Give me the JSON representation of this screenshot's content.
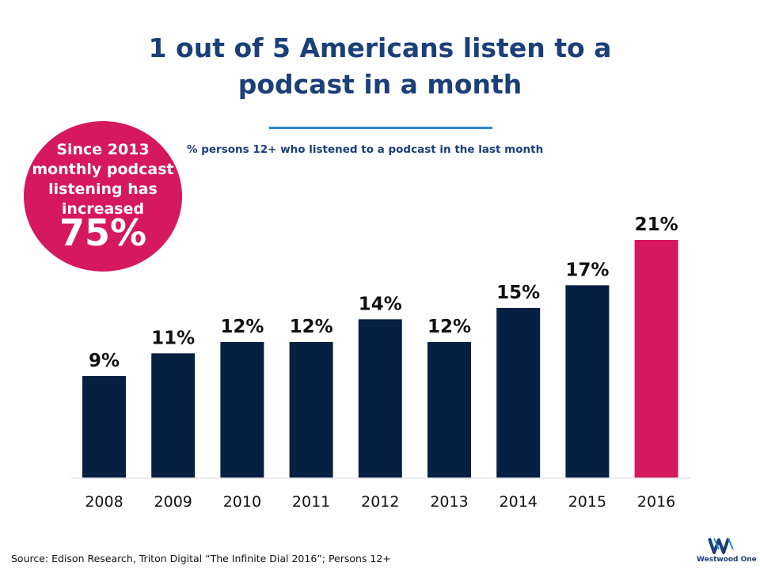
{
  "title_lines": [
    "1 out of 5 Americans listen to a",
    "podcast in a month"
  ],
  "subtitle": "% persons 12+ who listened to a podcast in the last month",
  "callout": {
    "lines": [
      "Since 2013",
      "monthly podcast",
      "listening has",
      "increased"
    ],
    "value": "75%"
  },
  "source": "Source: Edison Research, Triton Digital “The Infinite Dial 2016”; Persons 12+",
  "logo_text": "Westwood One",
  "colors": {
    "title": "#1b3f78",
    "bar": "#062042",
    "highlight": "#d6185f",
    "rule": "#2b8ccf"
  },
  "chart_data": {
    "type": "bar",
    "categories": [
      "2008",
      "2009",
      "2010",
      "2011",
      "2012",
      "2013",
      "2014",
      "2015",
      "2016"
    ],
    "values": [
      9,
      11,
      12,
      12,
      14,
      12,
      15,
      17,
      21
    ],
    "data_labels": [
      "9%",
      "11%",
      "12%",
      "12%",
      "14%",
      "12%",
      "15%",
      "17%",
      "21%"
    ],
    "highlight_category": "2016",
    "ylim": [
      0,
      21
    ],
    "grid": false,
    "legend": "none",
    "xlabel": "",
    "ylabel": ""
  }
}
